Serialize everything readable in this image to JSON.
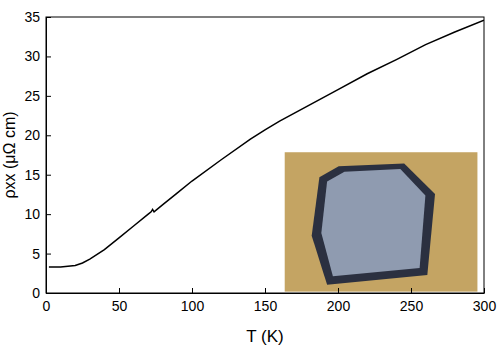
{
  "chart_data": {
    "type": "line",
    "x_label": "T (K)",
    "y_label": "ρxx (μΩ cm)",
    "x": [
      2,
      10,
      20,
      25,
      30,
      40,
      50,
      60,
      70,
      72,
      73,
      74,
      80,
      90,
      100,
      120,
      140,
      150,
      160,
      180,
      200,
      220,
      240,
      260,
      280,
      300
    ],
    "values": [
      3.3,
      3.3,
      3.5,
      3.8,
      4.3,
      5.5,
      7.0,
      8.5,
      10.0,
      10.3,
      10.6,
      10.3,
      11.2,
      12.7,
      14.2,
      16.9,
      19.5,
      20.7,
      21.8,
      23.8,
      25.8,
      27.8,
      29.6,
      31.5,
      33.1,
      34.6
    ],
    "color": "#000000",
    "xlim": [
      0,
      300
    ],
    "xticks": [
      0,
      50,
      100,
      150,
      200,
      250,
      300
    ],
    "ylim": [
      0,
      35
    ],
    "yticks": [
      0,
      5,
      10,
      15,
      20,
      25,
      30,
      35
    ],
    "grid": false
  }
}
